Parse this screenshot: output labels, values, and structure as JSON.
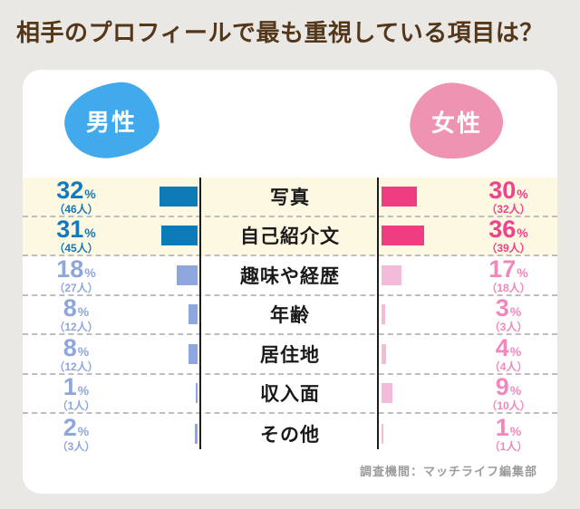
{
  "title": "相手のプロフィールで最も重視している項目は？",
  "legend": {
    "male": "男性",
    "female": "女性"
  },
  "units": {
    "percent": "%"
  },
  "footer": "調査機間：マッチライフ編集部",
  "colors": {
    "background": "#e9e8e4",
    "card": "#ffffff",
    "title_text": "#54361a",
    "male_blob": "#41aaec",
    "male_strong": "#0f7ab8",
    "male_light": "#8ea6de",
    "female_blob": "#ef93b2",
    "female_strong": "#ee3d80",
    "female_light": "#f2bcd8",
    "highlight_row": "#fdf8e2",
    "axis_line": "#1c1c1c",
    "dashed_divider": "#bdbdbd",
    "footer_text": "#9b9b9b"
  },
  "chart_data": {
    "type": "bar",
    "orientation": "horizontal",
    "diverging": true,
    "title": "相手のプロフィールで最も重視している項目は？",
    "categories": [
      "写真",
      "自己紹介文",
      "趣味や経歴",
      "年齢",
      "居住地",
      "収入面",
      "その他"
    ],
    "series": [
      {
        "name": "男性",
        "unit": "%",
        "values": [
          32,
          31,
          18,
          8,
          8,
          1,
          2
        ],
        "counts_people": [
          46,
          45,
          27,
          12,
          12,
          1,
          3
        ],
        "color": "#0f7ab8"
      },
      {
        "name": "女性",
        "unit": "%",
        "values": [
          30,
          36,
          17,
          3,
          4,
          9,
          1
        ],
        "counts_people": [
          32,
          39,
          18,
          3,
          4,
          10,
          1
        ],
        "color": "#ee3d80"
      }
    ],
    "highlighted_categories": [
      "写真",
      "自己紹介文"
    ],
    "source": "調査機間：マッチライフ編集部"
  },
  "rows": [
    {
      "label": "写真",
      "male_pct": "32",
      "male_count": "（46人）",
      "female_pct": "30",
      "female_count": "（32人）",
      "male_val": 32,
      "female_val": 30,
      "highlight": true,
      "strong": true
    },
    {
      "label": "自己紹介文",
      "male_pct": "31",
      "male_count": "（45人）",
      "female_pct": "36",
      "female_count": "（39人）",
      "male_val": 31,
      "female_val": 36,
      "highlight": true,
      "strong": true
    },
    {
      "label": "趣味や経歴",
      "male_pct": "18",
      "male_count": "（27人）",
      "female_pct": "17",
      "female_count": "（18人）",
      "male_val": 18,
      "female_val": 17,
      "highlight": false,
      "strong": false
    },
    {
      "label": "年齢",
      "male_pct": "8",
      "male_count": "（12人）",
      "female_pct": "3",
      "female_count": "（3人）",
      "male_val": 8,
      "female_val": 3,
      "highlight": false,
      "strong": false
    },
    {
      "label": "居住地",
      "male_pct": "8",
      "male_count": "（12人）",
      "female_pct": "4",
      "female_count": "（4人）",
      "male_val": 8,
      "female_val": 4,
      "highlight": false,
      "strong": false
    },
    {
      "label": "収入面",
      "male_pct": "1",
      "male_count": "（1人）",
      "female_pct": "9",
      "female_count": "（10人）",
      "male_val": 1,
      "female_val": 9,
      "highlight": false,
      "strong": false
    },
    {
      "label": "その他",
      "male_pct": "2",
      "male_count": "（3人）",
      "female_pct": "1",
      "female_count": "（1人）",
      "male_val": 2,
      "female_val": 1,
      "highlight": false,
      "strong": false
    }
  ]
}
